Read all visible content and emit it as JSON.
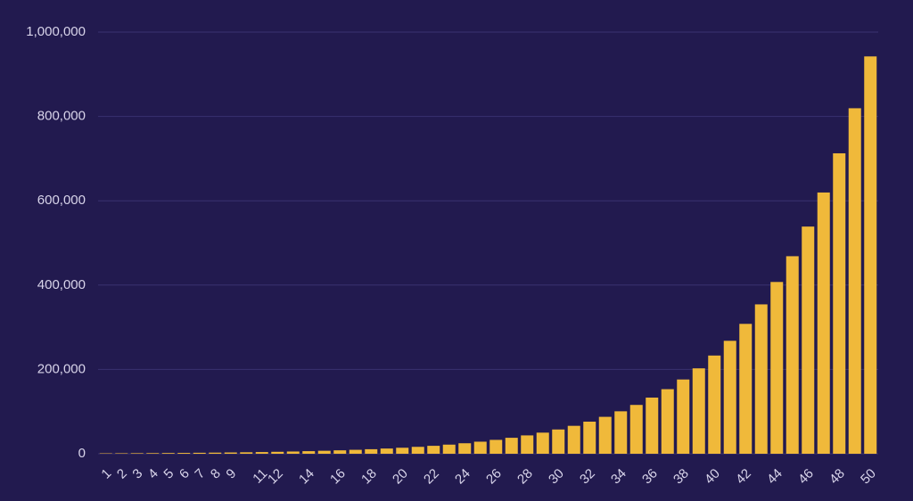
{
  "chart_data": {
    "type": "bar",
    "categories": [
      "1",
      "2",
      "3",
      "4",
      "5",
      "6",
      "7",
      "8",
      "9",
      null,
      "11",
      "12",
      null,
      "14",
      null,
      "16",
      null,
      "18",
      null,
      "20",
      null,
      "22",
      null,
      "24",
      null,
      "26",
      null,
      "28",
      null,
      "30",
      null,
      "32",
      null,
      "34",
      null,
      "36",
      null,
      "38",
      null,
      "40",
      null,
      "42",
      null,
      "44",
      null,
      "46",
      null,
      "48",
      null,
      "50"
    ],
    "values": [
      1000,
      1150,
      1323,
      1521,
      1749,
      2011,
      2313,
      2660,
      3059,
      3518,
      4046,
      4652,
      5350,
      6153,
      7076,
      8137,
      9358,
      10761,
      12375,
      14232,
      16367,
      18822,
      21645,
      24891,
      28625,
      32919,
      37857,
      43535,
      50066,
      57575,
      66212,
      76144,
      87565,
      100700,
      115805,
      133176,
      153152,
      176125,
      202543,
      232925,
      267864,
      308043,
      354250,
      407387,
      468495,
      538769,
      619585,
      712522,
      819401,
      942311
    ],
    "color": "#f0b93a",
    "ylim": [
      0,
      1000000
    ],
    "yticks": [
      0,
      {
        "value": 200000,
        "label": "200,000"
      },
      {
        "value": 400000,
        "label": "400,000"
      },
      {
        "value": 600000,
        "label": "600,000"
      },
      {
        "value": 800000,
        "label": "800,000"
      },
      {
        "value": 1000000,
        "label": "1,000,000"
      }
    ],
    "grid": true
  }
}
